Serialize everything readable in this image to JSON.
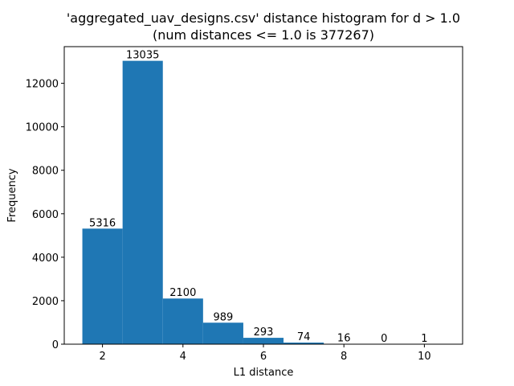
{
  "chart_data": {
    "type": "bar",
    "title_line1": "'aggregated_uav_designs.csv' distance histogram for d > 1.0",
    "title_line2": "(num distances <= 1.0 is 377267)",
    "xlabel": "L1 distance",
    "ylabel": "Frequency",
    "bins": [
      {
        "x0": 1.5,
        "x1": 2.5,
        "value": 5316,
        "label": "5316"
      },
      {
        "x0": 2.5,
        "x1": 3.5,
        "value": 13035,
        "label": "13035"
      },
      {
        "x0": 3.5,
        "x1": 4.5,
        "value": 2100,
        "label": "2100"
      },
      {
        "x0": 4.5,
        "x1": 5.5,
        "value": 989,
        "label": "989"
      },
      {
        "x0": 5.5,
        "x1": 6.5,
        "value": 293,
        "label": "293"
      },
      {
        "x0": 6.5,
        "x1": 7.5,
        "value": 74,
        "label": "74"
      },
      {
        "x0": 7.5,
        "x1": 8.5,
        "value": 16,
        "label": "16"
      },
      {
        "x0": 8.5,
        "x1": 9.5,
        "value": 0,
        "label": "0"
      },
      {
        "x0": 9.5,
        "x1": 10.5,
        "value": 1,
        "label": "1"
      }
    ],
    "xlim": [
      1.05,
      10.95
    ],
    "ylim": [
      0,
      13687
    ],
    "xticks": [
      2,
      4,
      6,
      8,
      10
    ],
    "xtick_labels": [
      "2",
      "4",
      "6",
      "8",
      "10"
    ],
    "yticks": [
      0,
      2000,
      4000,
      6000,
      8000,
      10000,
      12000
    ],
    "ytick_labels": [
      "0",
      "2000",
      "4000",
      "6000",
      "8000",
      "10000",
      "12000"
    ],
    "bar_color": "#1f77b4",
    "grid": false,
    "legend": "none"
  }
}
